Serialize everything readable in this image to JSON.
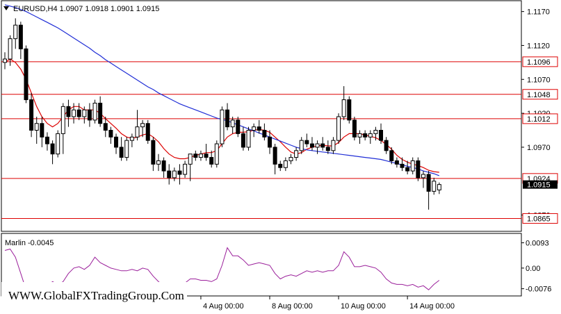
{
  "chart_data": [
    {
      "type": "candlestick",
      "symbol": "EURUSD",
      "timeframe": "H4",
      "title": "EURUSD,H4  1.0907 1.0918 1.0901 1.0915",
      "ohlc_last": {
        "open": "1.0907",
        "high": "1.0918",
        "low": "1.0901",
        "close": "1.0915"
      },
      "ylim": [
        1.0846,
        1.1186
      ],
      "y_ticks": [
        "1.1170",
        "1.1120",
        "1.1070",
        "1.1020",
        "1.0970",
        "1.0870"
      ],
      "x_ticks": [
        "4 Aug 00:00",
        "8 Aug 00:00",
        "10 Aug 00:00",
        "14 Aug 00:00"
      ],
      "horizontal_levels": [
        {
          "value": 1.1096,
          "label": "1.1096",
          "color": "#dd0000"
        },
        {
          "value": 1.1048,
          "label": "1.1048",
          "color": "#dd0000"
        },
        {
          "value": 1.1012,
          "label": "1.1012",
          "color": "#dd0000"
        },
        {
          "value": 1.0924,
          "label": "1.0924",
          "color": "#dd0000"
        },
        {
          "value": 1.0865,
          "label": "1.0865",
          "color": "#dd0000"
        }
      ],
      "current_price": {
        "value": 1.0915,
        "label": "1.0915"
      },
      "candles": [
        [
          1.1095,
          1.111,
          1.1085,
          1.11
        ],
        [
          1.11,
          1.1135,
          1.109,
          1.113
        ],
        [
          1.113,
          1.116,
          1.1115,
          1.115
        ],
        [
          1.115,
          1.1155,
          1.11,
          1.1115
        ],
        [
          1.1115,
          1.112,
          1.1035,
          1.104
        ],
        [
          1.104,
          1.105,
          1.0985,
          1.0995
        ],
        [
          1.0995,
          1.1015,
          1.0975,
          1.1005
        ],
        [
          1.1005,
          1.1015,
          1.097,
          1.0985
        ],
        [
          1.0985,
          1.0992,
          1.0965,
          1.0975
        ],
        [
          1.0975,
          1.098,
          1.0945,
          1.096
        ],
        [
          1.096,
          1.0995,
          1.0955,
          1.099
        ],
        [
          1.099,
          1.1035,
          1.096,
          1.103
        ],
        [
          1.103,
          1.104,
          1.1,
          1.1015
        ],
        [
          1.1015,
          1.1035,
          1.1005,
          1.1025
        ],
        [
          1.1025,
          1.1035,
          1.101,
          1.1015
        ],
        [
          1.1015,
          1.103,
          1.1005,
          1.1025
        ],
        [
          1.1025,
          1.1035,
          1.1,
          1.101
        ],
        [
          1.101,
          1.104,
          1.1005,
          1.1035
        ],
        [
          1.1035,
          1.1045,
          1.1,
          1.1005
        ],
        [
          1.1005,
          1.1015,
          1.0985,
          1.0995
        ],
        [
          1.0995,
          1.1,
          1.0975,
          1.0985
        ],
        [
          1.0985,
          1.099,
          1.096,
          1.097
        ],
        [
          1.097,
          1.0985,
          1.095,
          1.0955
        ],
        [
          1.0955,
          1.0985,
          1.095,
          1.098
        ],
        [
          1.098,
          1.099,
          1.097,
          1.0985
        ],
        [
          1.0985,
          1.1025,
          1.098,
          1.1
        ],
        [
          1.1,
          1.101,
          1.0985,
          1.1005
        ],
        [
          1.1005,
          1.101,
          1.0975,
          1.098
        ],
        [
          1.098,
          1.0985,
          1.0935,
          1.0945
        ],
        [
          1.0945,
          1.096,
          1.0935,
          1.095
        ],
        [
          1.095,
          1.0955,
          1.0925,
          1.0935
        ],
        [
          1.0935,
          1.0945,
          1.0915,
          1.0925
        ],
        [
          1.0925,
          1.094,
          1.092,
          1.0935
        ],
        [
          1.0935,
          1.0945,
          1.0915,
          1.093
        ],
        [
          1.093,
          1.095,
          1.0925,
          1.0945
        ],
        [
          1.0945,
          1.096,
          1.092,
          1.096
        ],
        [
          1.096,
          1.0965,
          1.095,
          1.0955
        ],
        [
          1.0955,
          1.0965,
          1.095,
          1.096
        ],
        [
          1.096,
          1.0975,
          1.095,
          1.0955
        ],
        [
          1.0955,
          1.0965,
          1.094,
          1.0945
        ],
        [
          1.0945,
          1.098,
          1.094,
          1.0975
        ],
        [
          1.0975,
          1.103,
          1.097,
          1.1025
        ],
        [
          1.1025,
          1.1035,
          1.0995,
          1.1
        ],
        [
          1.1,
          1.1015,
          1.099,
          1.101
        ],
        [
          1.101,
          1.1015,
          1.0985,
          1.099
        ],
        [
          1.099,
          1.1,
          1.0965,
          1.097
        ],
        [
          1.097,
          1.1,
          1.0965,
          1.0995
        ],
        [
          1.0995,
          1.1005,
          1.0985,
          1.1
        ],
        [
          1.1,
          1.101,
          1.099,
          1.0995
        ],
        [
          1.0995,
          1.1005,
          1.098,
          1.0985
        ],
        [
          1.0985,
          1.0995,
          1.096,
          1.097
        ],
        [
          1.097,
          1.0975,
          1.093,
          1.0945
        ],
        [
          1.0945,
          1.095,
          1.0935,
          1.094
        ],
        [
          1.094,
          1.0955,
          1.0935,
          1.095
        ],
        [
          1.095,
          1.096,
          1.0945,
          1.0955
        ],
        [
          1.0955,
          1.097,
          1.095,
          1.0965
        ],
        [
          1.0965,
          1.0985,
          1.096,
          1.098
        ],
        [
          1.098,
          1.099,
          1.097,
          1.0975
        ],
        [
          1.0975,
          1.0985,
          1.0965,
          1.097
        ],
        [
          1.097,
          1.098,
          1.096,
          1.0975
        ],
        [
          1.0975,
          1.0985,
          1.0965,
          1.097
        ],
        [
          1.097,
          1.098,
          1.096,
          1.0965
        ],
        [
          1.0965,
          1.0985,
          1.096,
          1.098
        ],
        [
          1.098,
          1.102,
          1.0975,
          1.1015
        ],
        [
          1.1015,
          1.106,
          1.101,
          1.104
        ],
        [
          1.104,
          1.1045,
          1.1005,
          1.101
        ],
        [
          1.101,
          1.1015,
          1.098,
          1.0985
        ],
        [
          1.0985,
          1.0995,
          1.0975,
          1.099
        ],
        [
          1.099,
          1.0995,
          1.098,
          1.0985
        ],
        [
          1.0985,
          1.0995,
          1.0975,
          1.099
        ],
        [
          1.099,
          1.1,
          1.098,
          1.0995
        ],
        [
          1.0995,
          1.1005,
          1.0975,
          1.098
        ],
        [
          1.098,
          1.0985,
          1.096,
          1.0965
        ],
        [
          1.0965,
          1.097,
          1.0945,
          1.095
        ],
        [
          1.095,
          1.0955,
          1.094,
          1.0945
        ],
        [
          1.0945,
          1.0955,
          1.0935,
          1.094
        ],
        [
          1.094,
          1.095,
          1.093,
          1.0935
        ],
        [
          1.0935,
          1.0955,
          1.093,
          1.095
        ],
        [
          1.095,
          1.0955,
          1.092,
          1.0925
        ],
        [
          1.0925,
          1.0935,
          1.091,
          1.093
        ],
        [
          1.093,
          1.0935,
          1.0878,
          1.0905
        ],
        [
          1.0905,
          1.0925,
          1.09,
          1.092
        ],
        [
          1.0907,
          1.0918,
          1.0901,
          1.0915
        ]
      ],
      "series": [
        {
          "name": "",
          "color": "#dd0000",
          "values": [
            1.1095,
            1.11,
            1.1095,
            1.1085,
            1.107,
            1.105,
            1.103,
            1.1015,
            1.1005,
            1.1,
            1.1005,
            1.1015,
            1.1025,
            1.103,
            1.103,
            1.1025,
            1.1025,
            1.1025,
            1.102,
            1.1012,
            1.1005,
            1.0998,
            1.099,
            1.0985,
            1.0983,
            1.0985,
            1.0988,
            1.099,
            1.0985,
            1.0978,
            1.0968,
            1.096,
            1.0955,
            1.0953,
            1.0953,
            1.0955,
            1.0958,
            1.096,
            1.0962,
            1.0962,
            1.0965,
            1.0975,
            1.0985,
            1.099,
            1.0992,
            1.0992,
            1.0993,
            1.0995,
            1.0996,
            1.0995,
            1.0992,
            1.0985,
            1.0978,
            1.097,
            1.0963,
            1.096,
            1.0962,
            1.0967,
            1.097,
            1.0972,
            1.0973,
            1.0972,
            1.0972,
            1.0977,
            1.0985,
            1.099,
            1.099,
            1.099,
            1.0988,
            1.0986,
            1.0984,
            1.098,
            1.0974,
            1.0967,
            1.0958,
            1.0952,
            1.0948,
            1.0945,
            1.0943,
            1.094,
            1.0936,
            1.0934,
            1.0933
          ]
        },
        {
          "name": "",
          "color": "#1f2dd6",
          "values": [
            1.118,
            1.1178,
            1.1176,
            1.1173,
            1.117,
            1.1166,
            1.1162,
            1.1158,
            1.1154,
            1.115,
            1.1146,
            1.1141,
            1.1136,
            1.1131,
            1.1126,
            1.1121,
            1.1116,
            1.111,
            1.1105,
            1.1099,
            1.1094,
            1.1089,
            1.1084,
            1.1079,
            1.1074,
            1.1069,
            1.1064,
            1.1059,
            1.1055,
            1.105,
            1.1046,
            1.1042,
            1.1038,
            1.1034,
            1.1031,
            1.1028,
            1.1025,
            1.1022,
            1.1019,
            1.1016,
            1.1013,
            1.1011,
            1.1009,
            1.1006,
            1.1003,
            1.1,
            1.0997,
            1.0994,
            1.0991,
            1.0988,
            1.0985,
            1.0982,
            1.0979,
            1.0976,
            1.0973,
            1.097,
            1.0968,
            1.0966,
            1.0965,
            1.0964,
            1.0963,
            1.0962,
            1.0961,
            1.096,
            1.0959,
            1.0958,
            1.0957,
            1.0956,
            1.0955,
            1.0954,
            1.0953,
            1.0952,
            1.095,
            1.0948,
            1.0946,
            1.0944,
            1.0942,
            1.094,
            1.0938,
            1.0935,
            1.0933,
            1.0931,
            1.0928
          ]
        }
      ]
    },
    {
      "type": "line",
      "indicator_label": "Marlin -0.0045",
      "ylim": [
        -0.01,
        0.0125
      ],
      "y_ticks": [
        "0.0093",
        "0.00",
        "-0.0076"
      ],
      "series": [
        {
          "name": "",
          "color": "#9a1e9a",
          "values": [
            0.0065,
            0.007,
            0.004,
            -0.002,
            -0.008,
            -0.0085,
            -0.0075,
            -0.006,
            -0.0065,
            -0.005,
            -0.006,
            -0.005,
            -0.002,
            0.0,
            0.0005,
            -0.0005,
            0.001,
            0.004,
            0.002,
            0.001,
            0.0,
            -0.0005,
            -0.001,
            -0.001,
            -0.0005,
            -0.001,
            0.0,
            -0.0005,
            -0.003,
            -0.005,
            -0.0065,
            -0.006,
            -0.0065,
            -0.006,
            -0.0055,
            -0.004,
            -0.004,
            -0.0045,
            -0.0045,
            -0.005,
            -0.004,
            0.001,
            0.0075,
            0.0045,
            0.0045,
            0.003,
            0.001,
            0.0015,
            0.002,
            0.0015,
            0.001,
            -0.002,
            -0.004,
            -0.003,
            -0.0025,
            -0.003,
            -0.002,
            -0.001,
            -0.0015,
            -0.001,
            -0.0015,
            -0.001,
            -0.001,
            0.001,
            0.006,
            0.004,
            0.0005,
            0.0005,
            0.001,
            0.0005,
            0.0,
            -0.0015,
            -0.004,
            -0.0055,
            -0.006,
            -0.006,
            -0.0065,
            -0.006,
            -0.007,
            -0.0065,
            -0.008,
            -0.006,
            -0.0045
          ]
        }
      ]
    }
  ],
  "watermark": "WWW.GlobalFXTradingGroup.Com"
}
